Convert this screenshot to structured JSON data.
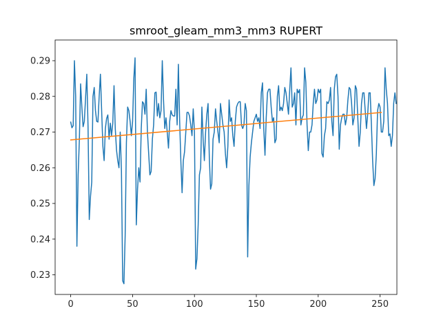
{
  "chart_data": {
    "type": "line",
    "title": "smroot_gleam_mm3_mm3 RUPERT",
    "xlabel": "",
    "ylabel": "",
    "xlim": [
      -12.6,
      263.6
    ],
    "ylim": [
      0.2245,
      0.2958
    ],
    "x_ticks": [
      0,
      50,
      100,
      150,
      200,
      250
    ],
    "x_tick_labels": [
      "0",
      "50",
      "100",
      "150",
      "200",
      "250"
    ],
    "y_ticks": [
      0.23,
      0.24,
      0.25,
      0.26,
      0.27,
      0.28,
      0.29
    ],
    "y_tick_labels": [
      "0.23",
      "0.24",
      "0.25",
      "0.26",
      "0.27",
      "0.28",
      "0.29"
    ],
    "grid": false,
    "legend": "none",
    "series": [
      {
        "color": "#1f77b4",
        "values": [
          0.2728,
          0.2712,
          0.2718,
          0.29,
          0.28,
          0.238,
          0.258,
          0.268,
          0.2835,
          0.277,
          0.2715,
          0.273,
          0.2795,
          0.2862,
          0.2715,
          0.2455,
          0.252,
          0.256,
          0.28,
          0.2825,
          0.276,
          0.273,
          0.2728,
          0.28,
          0.2862,
          0.276,
          0.266,
          0.262,
          0.271,
          0.2738,
          0.2748,
          0.268,
          0.2725,
          0.269,
          0.2725,
          0.283,
          0.271,
          0.265,
          0.262,
          0.26,
          0.27,
          0.259,
          0.2283,
          0.2275,
          0.241,
          0.267,
          0.277,
          0.276,
          0.273,
          0.269,
          0.273,
          0.285,
          0.2908,
          0.244,
          0.254,
          0.26,
          0.256,
          0.271,
          0.2785,
          0.278,
          0.275,
          0.282,
          0.27,
          0.264,
          0.258,
          0.259,
          0.268,
          0.272,
          0.281,
          0.2812,
          0.2745,
          0.278,
          0.274,
          0.276,
          0.29,
          0.279,
          0.271,
          0.274,
          0.27,
          0.2655,
          0.273,
          0.276,
          0.2748,
          0.2745,
          0.2745,
          0.282,
          0.272,
          0.289,
          0.2735,
          0.262,
          0.253,
          0.262,
          0.2645,
          0.27,
          0.2755,
          0.2755,
          0.2745,
          0.272,
          0.269,
          0.2765,
          0.27,
          0.2316,
          0.2345,
          0.244,
          0.258,
          0.26,
          0.277,
          0.268,
          0.262,
          0.27,
          0.275,
          0.278,
          0.263,
          0.254,
          0.2555,
          0.268,
          0.27,
          0.2765,
          0.273,
          0.27,
          0.267,
          0.278,
          0.275,
          0.272,
          0.27,
          0.264,
          0.26,
          0.266,
          0.279,
          0.273,
          0.274,
          0.269,
          0.266,
          0.273,
          0.277,
          0.278,
          0.2785,
          0.2785,
          0.272,
          0.271,
          0.272,
          0.278,
          0.276,
          0.235,
          0.255,
          0.263,
          0.267,
          0.27,
          0.273,
          0.274,
          0.275,
          0.273,
          0.274,
          0.271,
          0.281,
          0.2838,
          0.271,
          0.2635,
          0.274,
          0.281,
          0.282,
          0.282,
          0.277,
          0.273,
          0.274,
          0.267,
          0.268,
          0.28,
          0.283,
          0.276,
          0.277,
          0.276,
          0.278,
          0.2825,
          0.281,
          0.278,
          0.275,
          0.282,
          0.288,
          0.277,
          0.278,
          0.281,
          0.272,
          0.282,
          0.281,
          0.2819,
          0.272,
          0.274,
          0.2748,
          0.288,
          0.284,
          0.272,
          0.2648,
          0.27,
          0.27,
          0.272,
          0.278,
          0.282,
          0.278,
          0.279,
          0.282,
          0.281,
          0.282,
          0.264,
          0.263,
          0.269,
          0.271,
          0.2785,
          0.278,
          0.279,
          0.2825,
          0.273,
          0.269,
          0.282,
          0.2855,
          0.2862,
          0.28,
          0.2652,
          0.272,
          0.274,
          0.275,
          0.275,
          0.272,
          0.274,
          0.279,
          0.2825,
          0.282,
          0.278,
          0.272,
          0.274,
          0.283,
          0.282,
          0.274,
          0.266,
          0.27,
          0.278,
          0.281,
          0.281,
          0.276,
          0.271,
          0.275,
          0.281,
          0.281,
          0.272,
          0.262,
          0.255,
          0.257,
          0.264,
          0.276,
          0.278,
          0.277,
          0.27,
          0.27,
          0.273,
          0.288,
          0.282,
          0.278,
          0.269,
          0.2695,
          0.266,
          0.269,
          0.278,
          0.281,
          0.278
        ]
      },
      {
        "color": "#ff7f0e",
        "x": [
          0,
          251
        ],
        "values": [
          0.2678,
          0.2755
        ]
      }
    ]
  },
  "colors": {
    "series_line": "#1f77b4",
    "trend_line": "#ff7f0e",
    "axes": "#000000",
    "background": "#ffffff"
  }
}
